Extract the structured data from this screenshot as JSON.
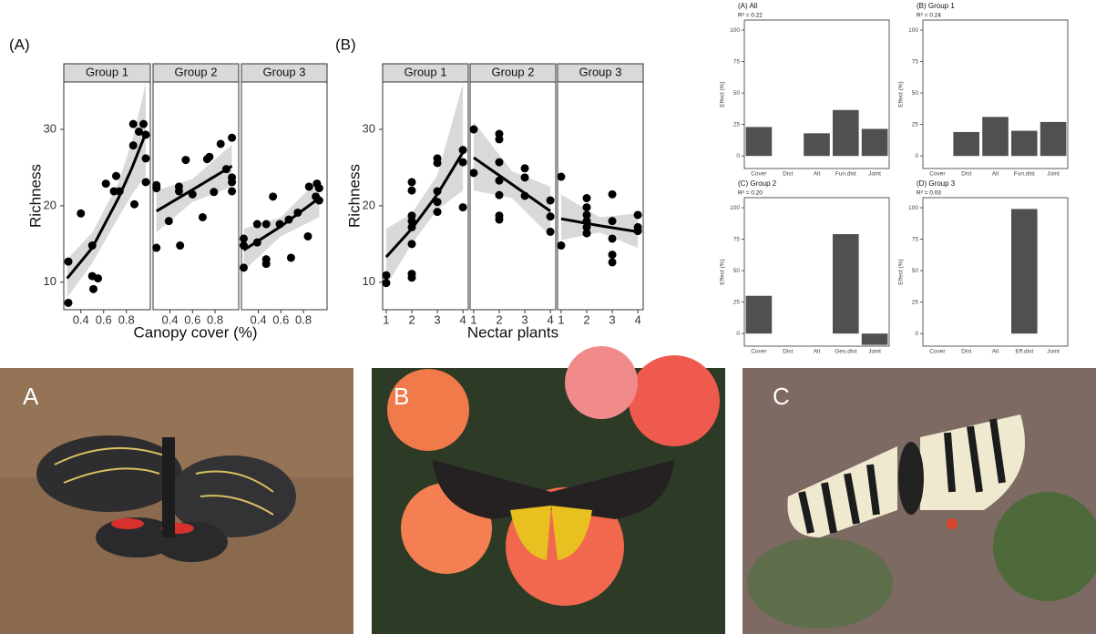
{
  "chart_data": [
    {
      "type": "scatter",
      "panel_label": "(A)",
      "xlabel": "Canopy cover (%)",
      "ylabel": "Richness",
      "ylim": [
        6.4,
        36.2
      ],
      "yticks": [
        10,
        20,
        30
      ],
      "color": "#000000",
      "ribbon_color": "#d9d9d9",
      "facets": [
        {
          "title": "Group 1",
          "xlim": [
            0.25,
            1.01
          ],
          "xticks": [
            0.4,
            0.6,
            0.8
          ],
          "x": [
            0.29,
            0.29,
            0.4,
            0.5,
            0.5,
            0.51,
            0.55,
            0.62,
            0.71,
            0.69,
            0.74,
            0.86,
            0.86,
            0.87,
            0.91,
            0.95,
            0.97,
            0.97,
            0.97
          ],
          "y": [
            12.7,
            7.3,
            19.0,
            14.8,
            10.8,
            9.1,
            10.5,
            22.9,
            23.9,
            21.9,
            21.9,
            30.7,
            27.9,
            20.2,
            29.7,
            30.7,
            29.3,
            26.2,
            23.1
          ],
          "fit": {
            "x": [
              0.28,
              0.5,
              0.73,
              0.85,
              0.97
            ],
            "y": [
              10.5,
              14.5,
              21.0,
              25.0,
              29.5
            ],
            "lower": [
              8.0,
              12.5,
              18.5,
              21.5,
              24.0
            ],
            "upper": [
              13.0,
              16.5,
              23.0,
              28.5,
              36.0
            ]
          }
        },
        {
          "title": "Group 2",
          "xlim": [
            0.25,
            1.01
          ],
          "xticks": [
            0.4,
            0.6,
            0.8
          ],
          "x": [
            0.28,
            0.28,
            0.28,
            0.39,
            0.48,
            0.48,
            0.49,
            0.54,
            0.6,
            0.69,
            0.73,
            0.75,
            0.79,
            0.85,
            0.9,
            0.95,
            0.95,
            0.95,
            0.95
          ],
          "y": [
            22.7,
            22.3,
            14.5,
            18.0,
            22.5,
            21.9,
            14.8,
            26.0,
            21.5,
            18.5,
            26.1,
            26.4,
            21.8,
            28.1,
            24.8,
            28.9,
            23.7,
            23.1,
            21.9
          ],
          "fit": {
            "x": [
              0.28,
              0.6,
              0.95
            ],
            "y": [
              19.3,
              22.1,
              25.2
            ],
            "lower": [
              16.5,
              20.5,
              22.5
            ],
            "upper": [
              22.0,
              23.5,
              28.0
            ]
          }
        },
        {
          "title": "Group 3",
          "xlim": [
            0.25,
            1.01
          ],
          "xticks": [
            0.4,
            0.6,
            0.8
          ],
          "x": [
            0.27,
            0.27,
            0.27,
            0.39,
            0.39,
            0.47,
            0.47,
            0.47,
            0.53,
            0.59,
            0.67,
            0.69,
            0.75,
            0.84,
            0.85,
            0.91,
            0.92,
            0.94,
            0.94
          ],
          "y": [
            11.9,
            15.7,
            14.8,
            17.6,
            15.2,
            13.0,
            12.4,
            17.6,
            21.2,
            17.6,
            18.2,
            13.2,
            19.1,
            16.0,
            22.5,
            21.2,
            22.9,
            22.3,
            20.7
          ],
          "fit": {
            "x": [
              0.27,
              0.6,
              0.94
            ],
            "y": [
              14.2,
              17.3,
              21.0
            ],
            "lower": [
              11.5,
              16.0,
              18.5
            ],
            "upper": [
              17.0,
              18.5,
              23.5
            ]
          }
        }
      ]
    },
    {
      "type": "scatter",
      "panel_label": "(B)",
      "xlabel": "Nectar plants",
      "ylabel": "Richness",
      "ylim": [
        6.4,
        36.2
      ],
      "yticks": [
        10,
        20,
        30
      ],
      "color": "#000000",
      "ribbon_color": "#d9d9d9",
      "facets": [
        {
          "title": "Group 1",
          "xlim": [
            0.86,
            4.21
          ],
          "xticks": [
            1,
            2,
            3,
            4
          ],
          "x": [
            1,
            1,
            2,
            2,
            2,
            2,
            2,
            2,
            2,
            2,
            3,
            3,
            3,
            3,
            3,
            4,
            4,
            4
          ],
          "y": [
            10.9,
            9.9,
            17.2,
            18.0,
            18.7,
            22.0,
            23.1,
            15.0,
            11.1,
            10.6,
            20.5,
            21.9,
            19.2,
            26.2,
            25.6,
            27.3,
            25.7,
            19.8
          ],
          "fit": {
            "x": [
              1,
              2,
              3,
              4
            ],
            "y": [
              13.3,
              17.0,
              21.5,
              27.0
            ],
            "lower": [
              9.5,
              15.0,
              19.5,
              22.0
            ],
            "upper": [
              17.0,
              19.0,
              24.0,
              36.0
            ]
          }
        },
        {
          "title": "Group 2",
          "xlim": [
            0.86,
            4.21
          ],
          "xticks": [
            1,
            2,
            3,
            4
          ],
          "x": [
            1,
            1,
            2,
            2,
            2,
            2,
            2,
            2,
            2,
            3,
            3,
            3,
            4,
            4,
            4
          ],
          "y": [
            30.0,
            24.3,
            29.4,
            28.7,
            25.7,
            23.3,
            21.4,
            18.7,
            18.2,
            24.9,
            23.7,
            21.3,
            20.7,
            18.6,
            16.6
          ],
          "fit": {
            "x": [
              1,
              2.5,
              4
            ],
            "y": [
              26.3,
              22.8,
              19.3
            ],
            "lower": [
              22.0,
              21.0,
              16.0
            ],
            "upper": [
              31.0,
              24.5,
              22.5
            ]
          }
        },
        {
          "title": "Group 3",
          "xlim": [
            0.86,
            4.21
          ],
          "xticks": [
            1,
            2,
            3,
            4
          ],
          "x": [
            1,
            1,
            2,
            2,
            2,
            2,
            2,
            2,
            3,
            3,
            3,
            3,
            3,
            4,
            4,
            4
          ],
          "y": [
            23.8,
            14.8,
            21.0,
            19.8,
            18.8,
            18.0,
            17.2,
            16.4,
            21.5,
            18.0,
            15.7,
            13.6,
            12.6,
            18.8,
            17.2,
            16.7
          ],
          "fit": {
            "x": [
              1,
              2.5,
              4
            ],
            "y": [
              18.3,
              17.4,
              16.6
            ],
            "lower": [
              15.5,
              16.5,
              14.5
            ],
            "upper": [
              21.5,
              18.5,
              19.0
            ]
          }
        }
      ]
    },
    {
      "type": "bar",
      "title": "(A) All",
      "subtitle": "R² = 0.22",
      "ylabel": "Effect (%)",
      "color": "#505050",
      "categories": [
        "Cover",
        "Dist",
        "Alt",
        "Fun.dist",
        "Joint"
      ],
      "values": [
        23,
        0,
        18,
        36.5,
        21.5
      ],
      "ylim": [
        -10,
        108
      ],
      "yticks": [
        0,
        25,
        50,
        75,
        100
      ]
    },
    {
      "type": "bar",
      "title": "(B) Group 1",
      "subtitle": "R² = 0.24",
      "ylabel": "Effect (%)",
      "color": "#505050",
      "categories": [
        "Cover",
        "Dist",
        "Alt",
        "Fun.dist",
        "Joint"
      ],
      "values": [
        0,
        19,
        31,
        20,
        27
      ],
      "ylim": [
        -10,
        108
      ],
      "yticks": [
        0,
        25,
        50,
        75,
        100
      ]
    },
    {
      "type": "bar",
      "title": "(C) Group 2",
      "subtitle": "R² = 0.20",
      "ylabel": "Effect (%)",
      "color": "#505050",
      "categories": [
        "Cover",
        "Dist",
        "Alt",
        "Geo.dist",
        "Joint"
      ],
      "values": [
        30,
        0,
        0,
        79,
        -9
      ],
      "ylim": [
        -10,
        108
      ],
      "yticks": [
        0,
        25,
        50,
        75,
        100
      ]
    },
    {
      "type": "bar",
      "title": "(D) Group 3",
      "subtitle": "R² = 0.03",
      "ylabel": "Effect (%)",
      "color": "#505050",
      "categories": [
        "Cover",
        "Dist",
        "Alt",
        "Eff.dist",
        "Joint"
      ],
      "values": [
        0,
        0,
        0,
        99,
        0
      ],
      "ylim": [
        -10,
        108
      ],
      "yticks": [
        0,
        25,
        50,
        75,
        100
      ]
    }
  ],
  "photos": {
    "labels": [
      "A",
      "B",
      "C"
    ]
  }
}
